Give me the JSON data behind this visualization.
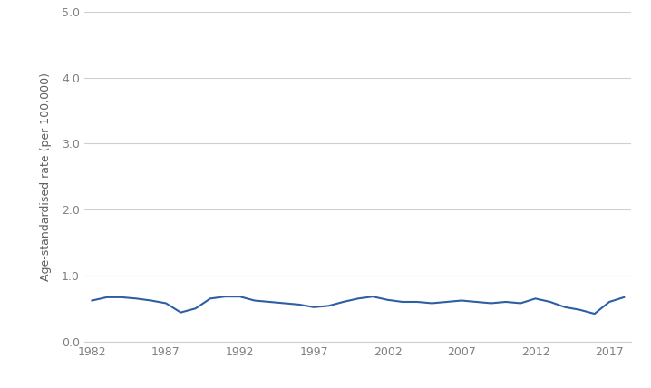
{
  "years": [
    1982,
    1983,
    1984,
    1985,
    1986,
    1987,
    1988,
    1989,
    1990,
    1991,
    1992,
    1993,
    1994,
    1995,
    1996,
    1997,
    1998,
    1999,
    2000,
    2001,
    2002,
    2003,
    2004,
    2005,
    2006,
    2007,
    2008,
    2009,
    2010,
    2011,
    2012,
    2013,
    2014,
    2015,
    2016,
    2017,
    2018
  ],
  "values": [
    0.62,
    0.67,
    0.67,
    0.65,
    0.62,
    0.58,
    0.44,
    0.5,
    0.65,
    0.68,
    0.68,
    0.62,
    0.6,
    0.58,
    0.56,
    0.52,
    0.54,
    0.6,
    0.65,
    0.68,
    0.63,
    0.6,
    0.6,
    0.58,
    0.6,
    0.62,
    0.6,
    0.58,
    0.6,
    0.58,
    0.65,
    0.6,
    0.52,
    0.48,
    0.42,
    0.6,
    0.67
  ],
  "line_color": "#2E5FA3",
  "line_width": 1.5,
  "ylabel": "Age-standardised rate (per 100,000)",
  "xlabel": "",
  "ylim": [
    0.0,
    5.0
  ],
  "yticks": [
    0.0,
    1.0,
    2.0,
    3.0,
    4.0,
    5.0
  ],
  "ytick_labels": [
    "0.0",
    "1.0",
    "2.0",
    "3.0",
    "4.0",
    "5.0"
  ],
  "xticks": [
    1982,
    1987,
    1992,
    1997,
    2002,
    2007,
    2012,
    2017
  ],
  "xlim": [
    1981.5,
    2018.5
  ],
  "background_color": "#ffffff",
  "grid_color": "#d0d0d0",
  "tick_color": "#808080",
  "label_color": "#606060"
}
